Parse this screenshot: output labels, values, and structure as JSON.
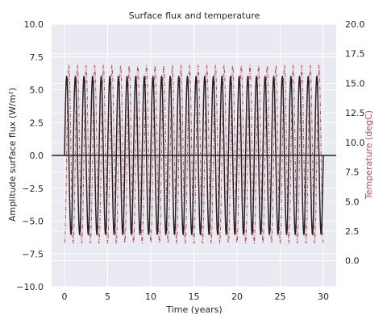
{
  "chart_data": {
    "type": "line",
    "title": "Surface flux and temperature",
    "xlabel": "Time (years)",
    "ylabel_left": "Amplitude surface flux (W/m²)",
    "ylabel_right": "Temperature (degC)",
    "xlim": [
      -1.5,
      31.5
    ],
    "ylim_left": [
      -10,
      10
    ],
    "ylim_right": [
      -2.2,
      20
    ],
    "xticks": [
      0,
      5,
      10,
      15,
      20,
      25,
      30
    ],
    "xtick_labels": [
      "0",
      "5",
      "10",
      "15",
      "20",
      "25",
      "30"
    ],
    "yticks_left": [
      -10,
      -7.5,
      -5,
      -2.5,
      0,
      2.5,
      5,
      7.5,
      10
    ],
    "ytick_labels_left": [
      "−10.0",
      "−7.5",
      "−5.0",
      "−2.5",
      "0.0",
      "2.5",
      "5.0",
      "7.5",
      "10.0"
    ],
    "yticks_right": [
      0,
      2.5,
      5,
      7.5,
      10,
      12.5,
      15,
      17.5,
      20
    ],
    "ytick_labels_right": [
      "0.0",
      "2.5",
      "5.0",
      "7.5",
      "10.0",
      "12.5",
      "15.0",
      "17.5",
      "20.0"
    ],
    "grid": true,
    "series": [
      {
        "axis": "left",
        "color": "#222222",
        "style": "solid",
        "function": "sine",
        "amplitude": 6.0,
        "offset": 0.0,
        "period_years": 1.0,
        "phase_cycles": 0.0,
        "x_start": 0,
        "x_end": 30
      },
      {
        "axis": "right",
        "color": "#c44e52",
        "style": "dash-dot",
        "function": "sine",
        "amplitude": 7.5,
        "offset": 9.0,
        "period_years": 1.0,
        "phase_cycles": -0.25,
        "x_start": 0,
        "x_end": 30
      }
    ],
    "hline": {
      "axis": "left",
      "y": 0,
      "color": "#222222",
      "x_start": -1.5,
      "x_end": 31.5
    }
  },
  "colors": {
    "plot_bg": "#eaeaf2",
    "grid": "#ffffff",
    "text": "#262626",
    "right_label": "#c44e52"
  }
}
